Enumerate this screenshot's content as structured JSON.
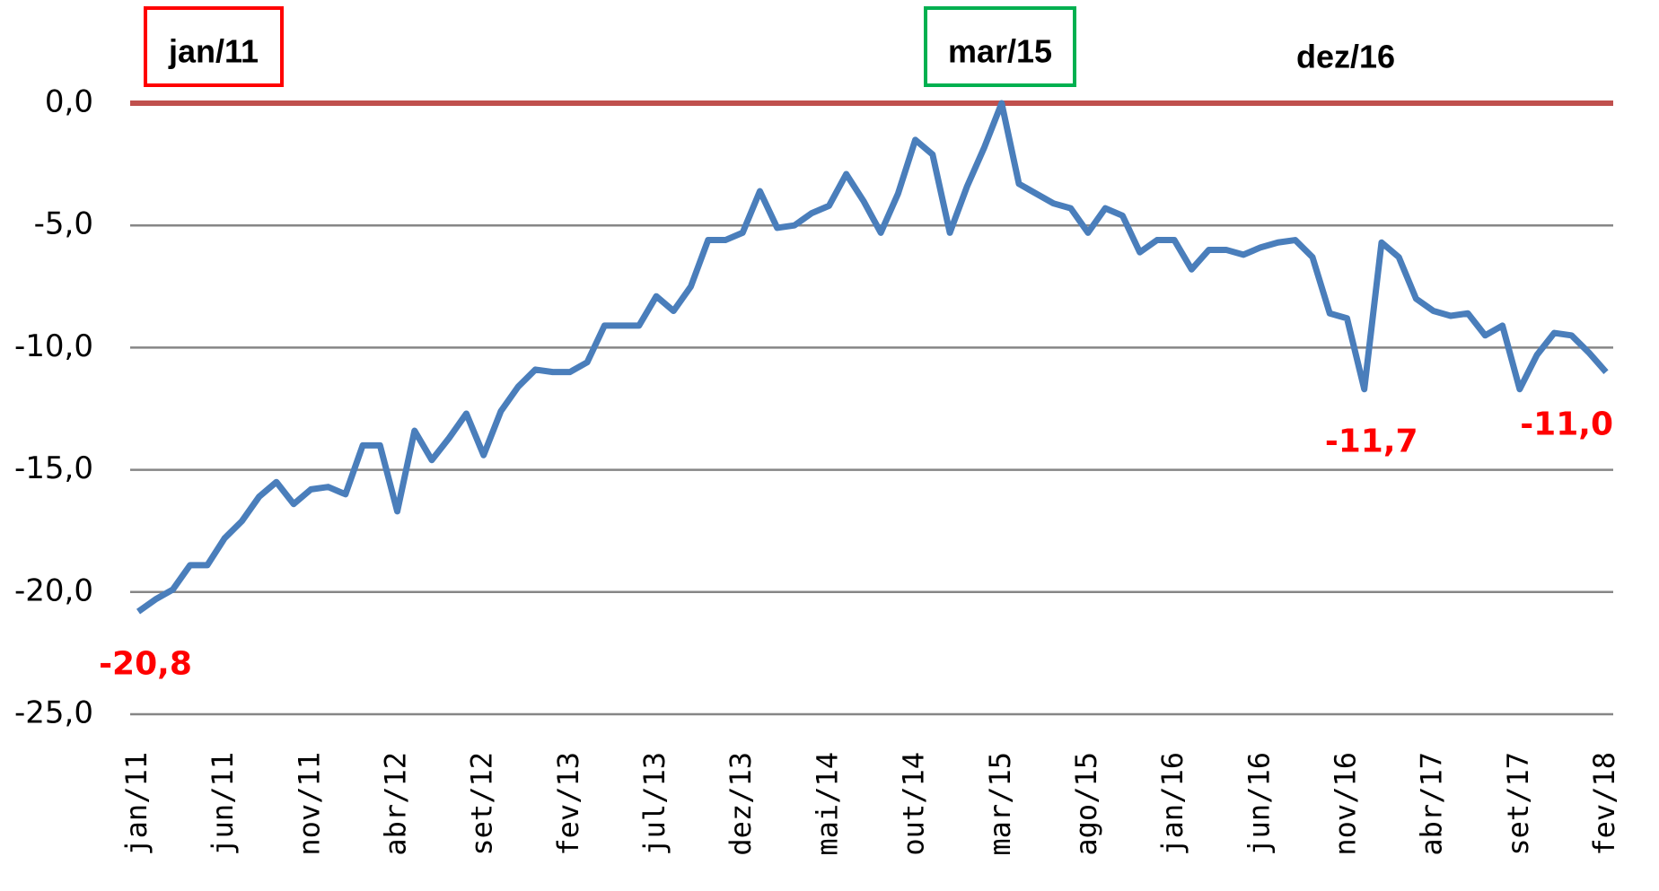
{
  "chart_data": {
    "type": "line",
    "categories": [
      "jan/11",
      null,
      null,
      null,
      null,
      "jun/11",
      null,
      null,
      null,
      null,
      "nov/11",
      null,
      null,
      null,
      null,
      "abr/12",
      null,
      null,
      null,
      null,
      "set/12",
      null,
      null,
      null,
      null,
      "fev/13",
      null,
      null,
      null,
      null,
      "jul/13",
      null,
      null,
      null,
      null,
      "dez/13",
      null,
      null,
      null,
      null,
      "mai/14",
      null,
      null,
      null,
      null,
      "out/14",
      null,
      null,
      null,
      null,
      "mar/15",
      null,
      null,
      null,
      null,
      "ago/15",
      null,
      null,
      null,
      null,
      "jan/16",
      null,
      null,
      null,
      null,
      "jun/16",
      null,
      null,
      null,
      null,
      "nov/16",
      null,
      null,
      null,
      null,
      "abr/17",
      null,
      null,
      null,
      null,
      "set/17",
      null,
      null,
      null,
      null,
      "fev/18"
    ],
    "values": [
      -20.8,
      -20.3,
      -19.9,
      -18.9,
      -18.9,
      -17.8,
      -17.1,
      -16.1,
      -15.5,
      -16.4,
      -15.8,
      -15.7,
      -16.0,
      -14.0,
      -14.0,
      -16.7,
      -13.4,
      -14.6,
      -13.7,
      -12.7,
      -14.4,
      -12.6,
      -11.6,
      -10.9,
      -11.0,
      -11.0,
      -10.6,
      -9.1,
      -9.1,
      -9.1,
      -7.9,
      -8.5,
      -7.5,
      -5.6,
      -5.6,
      -5.3,
      -3.6,
      -5.1,
      -5.0,
      -4.5,
      -4.2,
      -2.9,
      -4.0,
      -5.3,
      -3.7,
      -1.5,
      -2.1,
      -5.3,
      -3.4,
      -1.8,
      0.0,
      -3.3,
      -3.7,
      -4.1,
      -4.3,
      -5.3,
      -4.3,
      -4.6,
      -6.1,
      -5.6,
      -5.6,
      -6.8,
      -6.0,
      -6.0,
      -6.2,
      -5.9,
      -5.7,
      -5.6,
      -6.3,
      -8.6,
      -8.8,
      -11.7,
      -5.7,
      -6.3,
      -8.0,
      -8.5,
      -8.7,
      -8.6,
      -9.5,
      -9.1,
      -11.7,
      -10.3,
      -9.4,
      -9.5,
      -10.2,
      -11.0
    ],
    "value_labels": [
      "-20,8",
      null,
      null,
      null,
      null,
      null,
      null,
      null,
      null,
      null,
      null,
      null,
      null,
      null,
      null,
      null,
      null,
      null,
      null,
      null,
      null,
      null,
      null,
      null,
      null,
      null,
      null,
      null,
      null,
      null,
      null,
      null,
      null,
      null,
      null,
      null,
      null,
      null,
      null,
      null,
      null,
      null,
      null,
      null,
      null,
      null,
      null,
      null,
      null,
      null,
      null,
      null,
      null,
      null,
      null,
      null,
      null,
      null,
      null,
      null,
      null,
      null,
      null,
      null,
      null,
      null,
      null,
      null,
      null,
      null,
      null,
      "-11,7",
      null,
      null,
      null,
      null,
      null,
      null,
      null,
      null,
      null,
      null,
      null,
      null,
      null,
      "-11,0"
    ],
    "color": "#4a7ebb",
    "ylim": [
      -25,
      0
    ],
    "yticks": [
      {
        "value": -25,
        "label": "-25,0"
      },
      {
        "value": -20,
        "label": "-20,0"
      },
      {
        "value": -15,
        "label": "-15,0"
      },
      {
        "value": -10,
        "label": "-10,0"
      },
      {
        "value": -5,
        "label": "-5,0"
      },
      {
        "value": 0,
        "label": "0,0"
      }
    ],
    "grid": true,
    "reference_line": {
      "value": 0,
      "color": "#c0504d"
    },
    "annotations": [
      "jan/11",
      "mar/15",
      "dez/16"
    ]
  }
}
